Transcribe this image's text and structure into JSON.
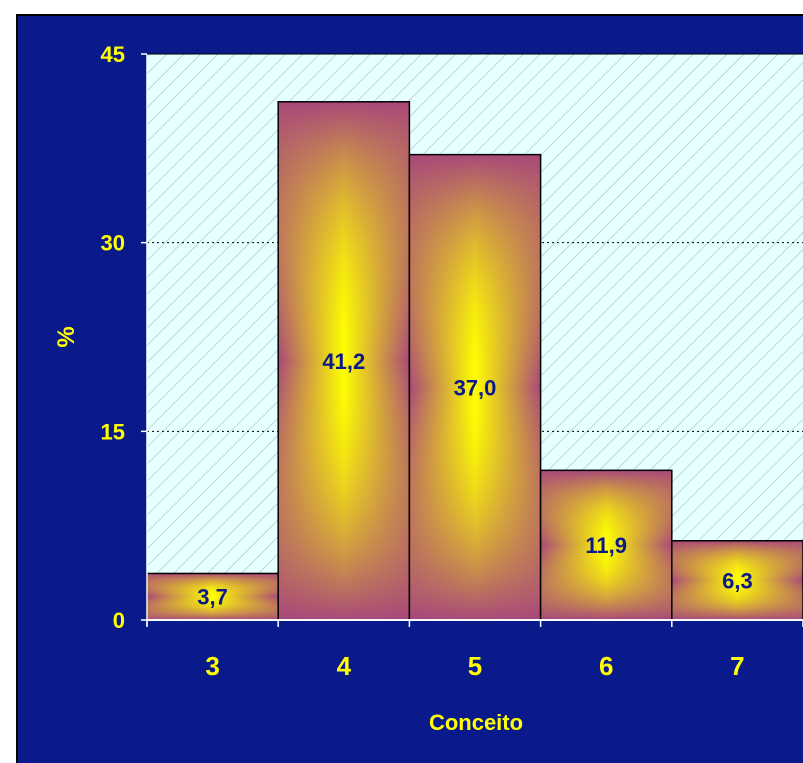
{
  "chart_data": {
    "type": "bar",
    "categories": [
      "3",
      "4",
      "5",
      "6",
      "7"
    ],
    "values": [
      3.7,
      41.2,
      37.0,
      11.9,
      6.3
    ],
    "value_labels": [
      "3,7",
      "41,2",
      "37,0",
      "11,9",
      "6,3"
    ],
    "y_ticks": [
      "0",
      "15",
      "30",
      "45"
    ],
    "ylim": [
      0,
      45
    ],
    "xlabel": "Conceito",
    "ylabel": "%",
    "grid": true,
    "colors": {
      "background": "#0a1a8a",
      "plot_area": "#e6ffff",
      "hatch": "#9ab0c4",
      "bar_edge": "#a8487a",
      "bar_center": "#ffff00",
      "axis_text": "#ffff00",
      "data_label": "#0a1a8a"
    }
  }
}
